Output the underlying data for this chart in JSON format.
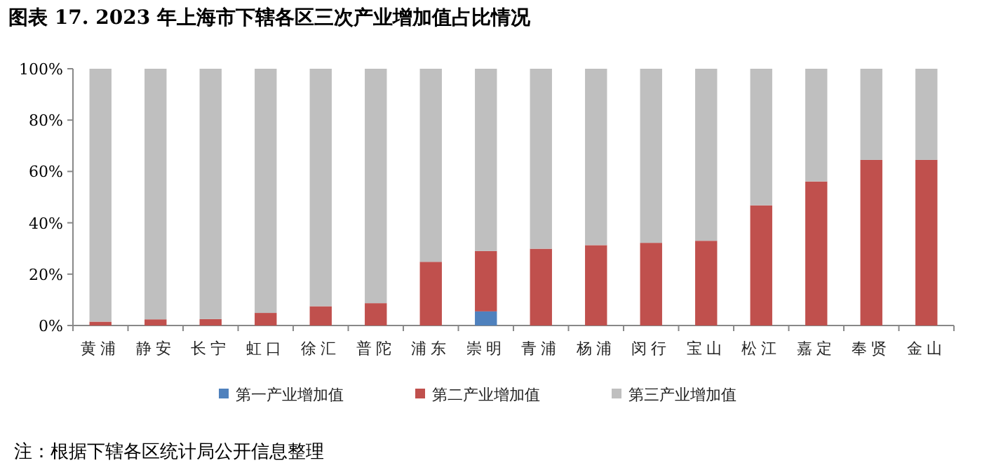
{
  "chart_data": {
    "type": "bar",
    "stacked": true,
    "title": "图表 17.  2023 年上海市下辖各区三次产业增加值占比情况",
    "categories": [
      "黄浦",
      "静安",
      "长宁",
      "虹口",
      "徐汇",
      "普陀",
      "浦东",
      "崇明",
      "青浦",
      "杨浦",
      "闵行",
      "宝山",
      "松江",
      "嘉定",
      "奉贤",
      "金山"
    ],
    "series": [
      {
        "name": "第一产业增加值",
        "color": "#4f81bd",
        "values": [
          0,
          0,
          0,
          0,
          0,
          0,
          0,
          5.5,
          0,
          0,
          0,
          0,
          0,
          0,
          0,
          0
        ]
      },
      {
        "name": "第二产业增加值",
        "color": "#c0504d",
        "values": [
          1.5,
          2.4,
          2.5,
          4.9,
          7.5,
          8.7,
          24.8,
          23.5,
          29.9,
          31.3,
          32.2,
          33.0,
          46.8,
          56.1,
          64.5,
          64.5
        ]
      },
      {
        "name": "第三产业增加值",
        "color": "#bfbfbf",
        "values": [
          98.5,
          97.6,
          97.5,
          95.1,
          92.5,
          91.3,
          75.2,
          71.0,
          70.1,
          68.7,
          67.8,
          67.0,
          53.2,
          43.9,
          35.5,
          35.5
        ]
      }
    ],
    "ylim": [
      0,
      100
    ],
    "yticks": [
      {
        "value": 0,
        "label": "0%"
      },
      {
        "value": 20,
        "label": "20%"
      },
      {
        "value": 40,
        "label": "40%"
      },
      {
        "value": 60,
        "label": "60%"
      },
      {
        "value": 80,
        "label": "80%"
      },
      {
        "value": 100,
        "label": "100%"
      }
    ],
    "legend": "bottom",
    "annotations": [
      "注：根据下辖各区统计局公开信息整理"
    ]
  }
}
